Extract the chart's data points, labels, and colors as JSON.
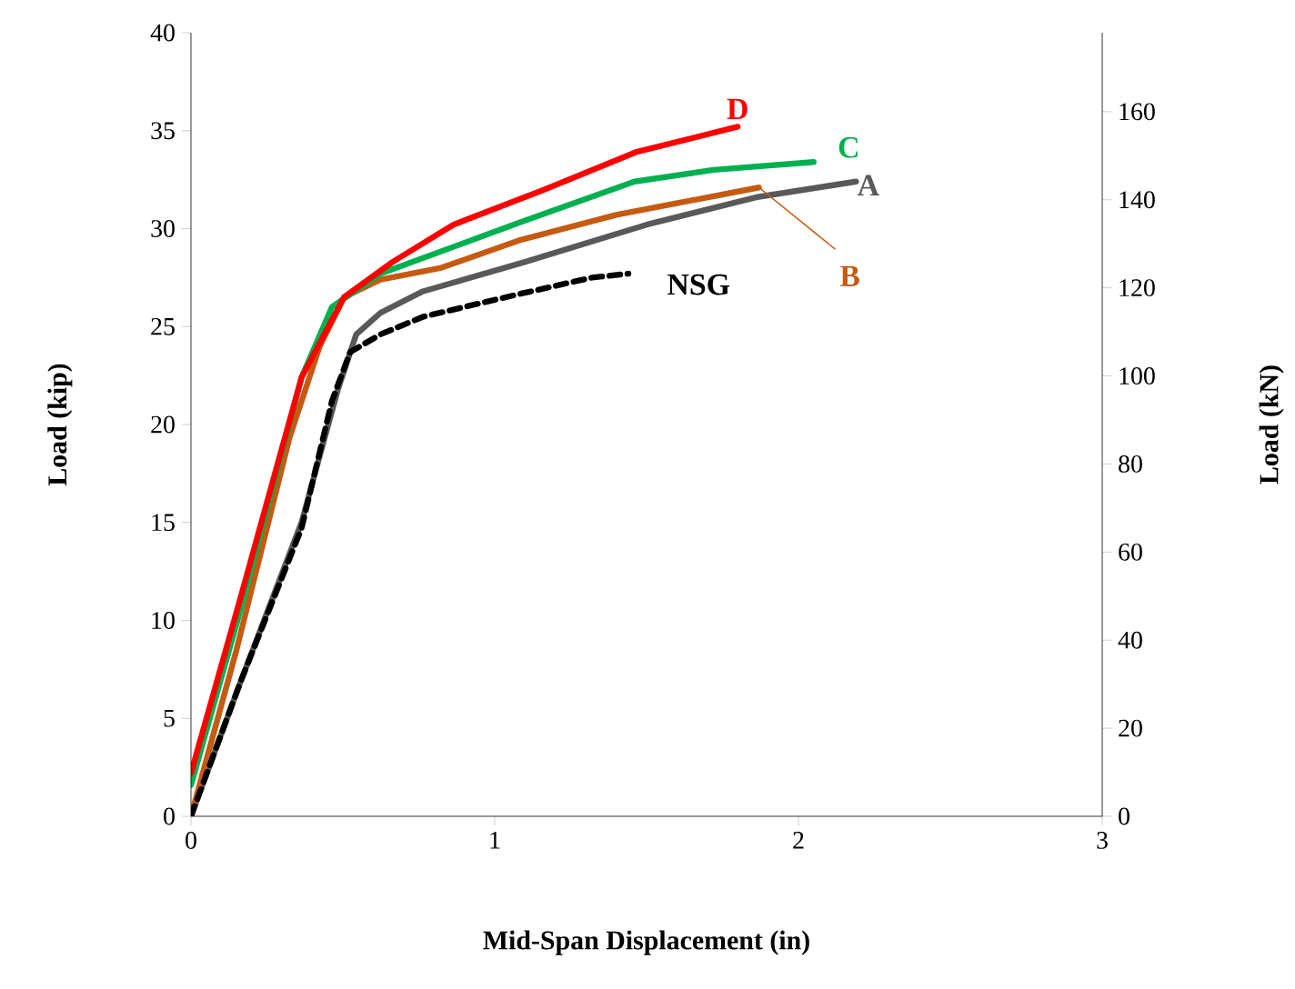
{
  "chart_data": {
    "type": "line",
    "xlabel": "Mid-Span Displacement (in)",
    "ylabel": "Load (kip)",
    "y2label": "Load (kN)",
    "xlim": [
      0,
      3
    ],
    "xticks": [
      0,
      1,
      2,
      3
    ],
    "ylim": [
      0,
      40
    ],
    "yticks": [
      0,
      5,
      10,
      15,
      20,
      25,
      30,
      35,
      40
    ],
    "y2lim": [
      0,
      177.93
    ],
    "y2ticks": [
      0,
      20,
      40,
      60,
      80,
      100,
      120,
      140,
      160
    ],
    "grid": false,
    "legend": false,
    "marker": "none",
    "series": [
      {
        "name": "A",
        "color": "#595959",
        "line_style": "solid",
        "x": [
          0,
          0.164,
          0.364,
          0.484,
          0.544,
          0.624,
          0.764,
          1.1,
          1.5,
          1.86,
          2.19
        ],
        "values": [
          0,
          6.9,
          15.0,
          21.8,
          24.6,
          25.7,
          26.8,
          28.3,
          30.2,
          31.6,
          32.4
        ]
      },
      {
        "name": "B",
        "color": "#c55a11",
        "line_style": "solid",
        "x": [
          0,
          0.15,
          0.324,
          0.424,
          0.504,
          0.624,
          0.824,
          1.08,
          1.4,
          1.87
        ],
        "values": [
          0,
          8.5,
          19.3,
          24.0,
          26.5,
          27.4,
          28.0,
          29.4,
          30.7,
          32.1
        ]
      },
      {
        "name": "C",
        "color": "#00b050",
        "line_style": "solid",
        "x": [
          0,
          0.164,
          0.364,
          0.464,
          0.624,
          1.08,
          1.46,
          1.72,
          2.05
        ],
        "values": [
          1.6,
          10.6,
          22.4,
          26.0,
          27.7,
          30.3,
          32.4,
          33.0,
          33.4
        ]
      },
      {
        "name": "D",
        "color": "#ff0000",
        "line_style": "solid",
        "x": [
          0,
          0.164,
          0.364,
          0.504,
          0.664,
          0.864,
          1.164,
          1.464,
          1.8
        ],
        "values": [
          2.2,
          11.2,
          22.4,
          26.5,
          28.3,
          30.2,
          32.0,
          33.9,
          35.2
        ]
      },
      {
        "name": "NSG",
        "color": "#000000",
        "line_style": "dashed",
        "x": [
          0,
          0.164,
          0.364,
          0.464,
          0.524,
          0.624,
          0.764,
          1.064,
          1.32,
          1.44
        ],
        "values": [
          0,
          6.9,
          14.7,
          21.2,
          23.7,
          24.6,
          25.5,
          26.6,
          27.5,
          27.7
        ]
      }
    ]
  }
}
